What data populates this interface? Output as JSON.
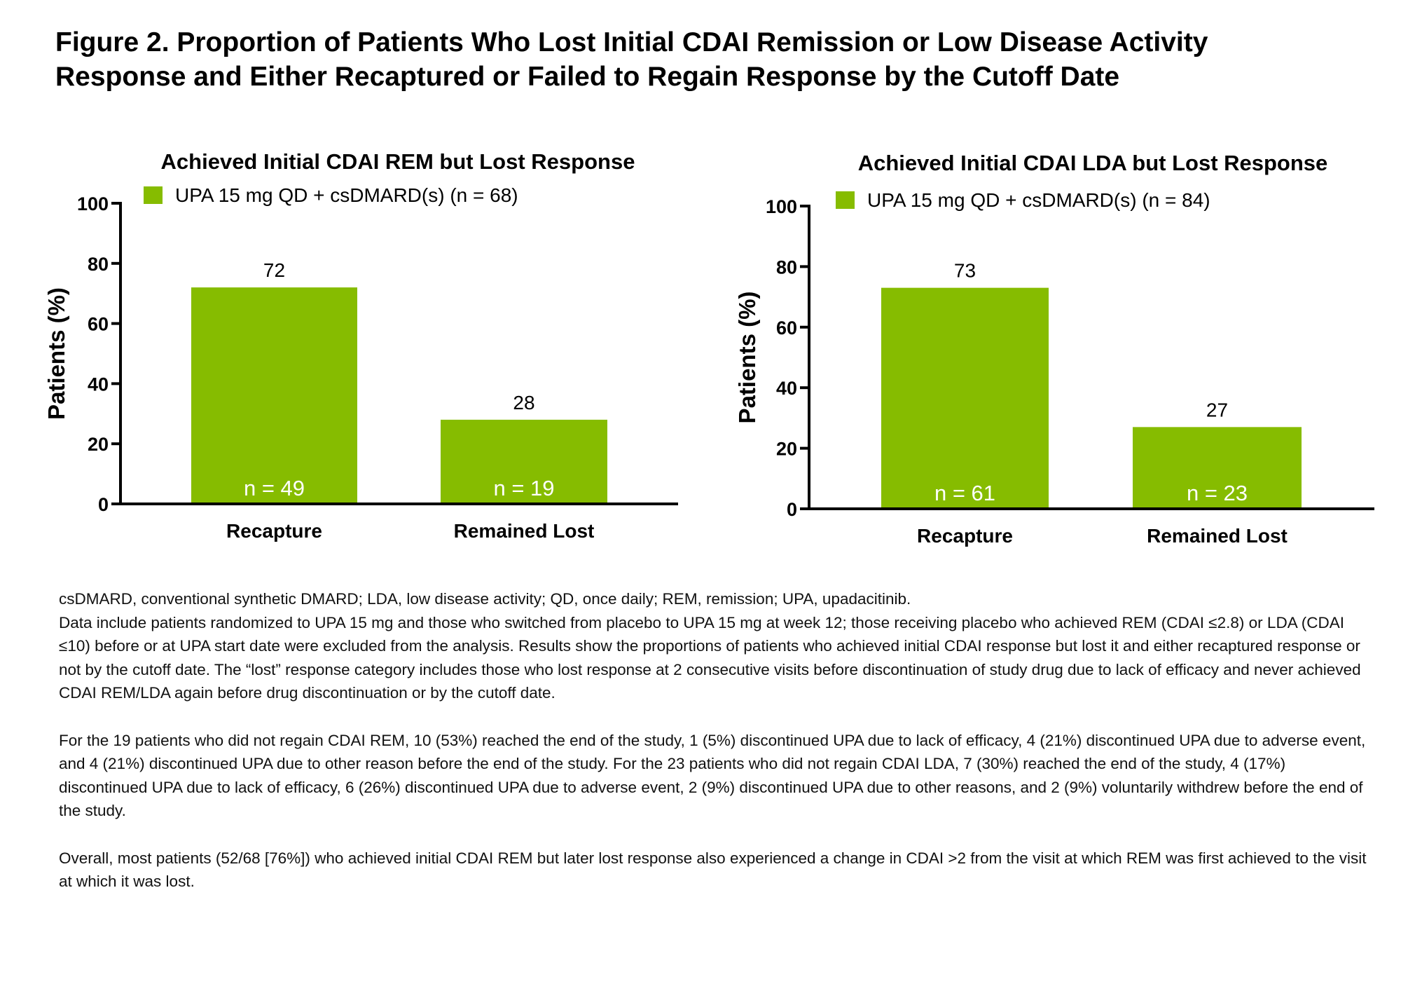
{
  "figure": {
    "title_line1": "Figure 2. Proportion of Patients Who Lost Initial CDAI Remission or Low Disease Activity",
    "title_line2": "Response and Either Recaptured or Failed to Regain Response by the Cutoff Date"
  },
  "colors": {
    "bar": "#86bc00",
    "axis": "#000000",
    "n_label": "#ffffff"
  },
  "chart_data": [
    {
      "type": "bar",
      "title": "Achieved Initial CDAI REM but Lost Response",
      "xlabel": "",
      "ylabel": "Patients (%)",
      "ylim": [
        0,
        100
      ],
      "yticks": [
        0,
        20,
        40,
        60,
        80,
        100
      ],
      "legend": {
        "label": "UPA 15 mg QD + csDMARD(s) (n = 68)",
        "position": "top-left"
      },
      "categories": [
        "Recapture",
        "Remained Lost"
      ],
      "values": [
        72,
        28
      ],
      "value_labels": [
        "72",
        "28"
      ],
      "n_labels": [
        "n = 49",
        "n = 19"
      ],
      "grid": false
    },
    {
      "type": "bar",
      "title": "Achieved Initial CDAI LDA but Lost Response",
      "xlabel": "",
      "ylabel": "Patients (%)",
      "ylim": [
        0,
        100
      ],
      "yticks": [
        0,
        20,
        40,
        60,
        80,
        100
      ],
      "legend": {
        "label": "UPA 15 mg QD + csDMARD(s) (n = 84)",
        "position": "top-left"
      },
      "categories": [
        "Recapture",
        "Remained Lost"
      ],
      "values": [
        73,
        27
      ],
      "value_labels": [
        "73",
        "27"
      ],
      "n_labels": [
        "n = 61",
        "n = 23"
      ],
      "grid": false
    }
  ],
  "notes": {
    "abbreviations": "csDMARD, conventional synthetic DMARD; LDA, low disease activity; QD, once daily; REM, remission; UPA, upadacitinib.",
    "methods": "Data include patients randomized to UPA 15 mg and those who switched from placebo to UPA 15 mg at week 12; those receiving placebo who achieved REM (CDAI ≤2.8) or LDA (CDAI ≤10) before or at UPA start date were excluded from the analysis. Results show the proportions of patients who achieved initial CDAI response but lost it and either recaptured response or not by the cutoff date. The “lost” response category includes those who lost response at 2 consecutive visits before discontinuation of study drug due to lack of efficacy and never achieved CDAI REM/LDA again before drug discontinuation or by the cutoff date.",
    "breakdown": "For the 19 patients who did not regain CDAI REM, 10 (53%)  reached the end of the study, 1 (5%) discontinued UPA due to lack of efficacy, 4 (21%) discontinued UPA due to adverse event, and 4 (21%) discontinued UPA due to other reason before the end of the study. For the 23 patients who did not regain CDAI LDA, 7 (30%) reached the end of the study, 4 (17%) discontinued UPA due to lack of efficacy, 6 (26%) discontinued UPA due to adverse event, 2 (9%) discontinued UPA due to other reasons, and 2 (9%) voluntarily withdrew before the end of the study.",
    "overall": "Overall, most patients (52/68 [76%]) who achieved initial CDAI REM but later lost response also experienced a change in CDAI >2 from the visit at which REM was first achieved to the visit at which it was lost."
  }
}
